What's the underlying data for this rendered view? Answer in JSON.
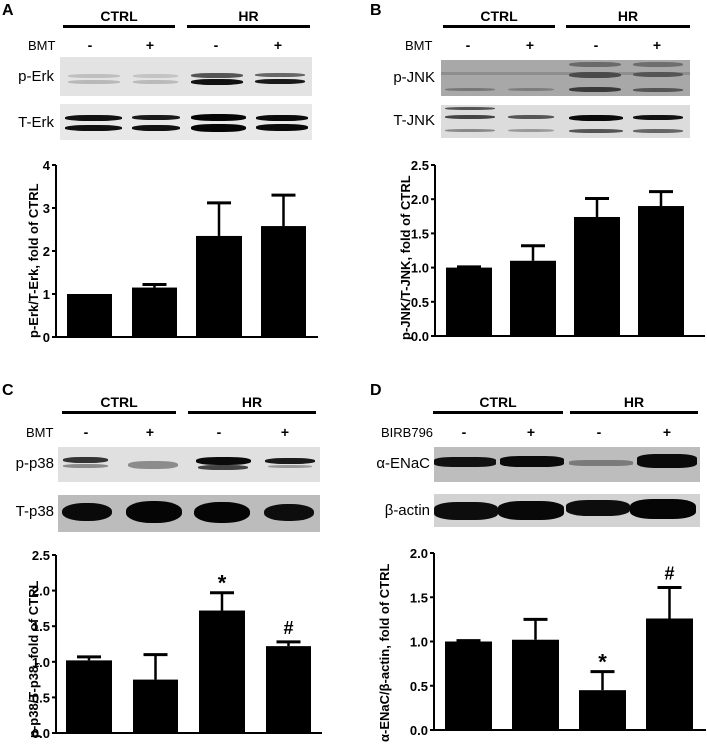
{
  "panels": [
    {
      "letter": "A",
      "groups": [
        "CTRL",
        "HR"
      ],
      "treatment": "BMT",
      "signs": [
        "-",
        "+",
        "-",
        "+"
      ],
      "blots": [
        {
          "label": "p-Erk",
          "bg": "#e4e4e4"
        },
        {
          "label": "T-Erk",
          "bg": "#e8e8e8"
        }
      ]
    },
    {
      "letter": "B",
      "groups": [
        "CTRL",
        "HR"
      ],
      "treatment": "BMT",
      "signs": [
        "-",
        "+",
        "-",
        "+"
      ],
      "blots": [
        {
          "label": "p-JNK",
          "bg": "#9a9a9a"
        },
        {
          "label": "T-JNK",
          "bg": "#dcdcdc"
        }
      ]
    },
    {
      "letter": "C",
      "groups": [
        "CTRL",
        "HR"
      ],
      "treatment": "BMT",
      "signs": [
        "-",
        "+",
        "-",
        "+"
      ],
      "blots": [
        {
          "label": "p-p38",
          "bg": "#e2e2e2"
        },
        {
          "label": "T-p38",
          "bg": "#bdbdbd"
        }
      ]
    },
    {
      "letter": "D",
      "groups": [
        "CTRL",
        "HR"
      ],
      "treatment": "BIRB796",
      "signs": [
        "-",
        "+",
        "-",
        "+"
      ],
      "blots": [
        {
          "label": "α-ENaC",
          "bg": "#bfbfbf"
        },
        {
          "label": "β-actin",
          "bg": "#d4d4d4"
        }
      ]
    }
  ],
  "chart_data": [
    {
      "panel": "A",
      "type": "bar",
      "title": "",
      "categories": [
        "CTRL BMT-",
        "CTRL BMT+",
        "HR BMT-",
        "HR BMT+"
      ],
      "values": [
        1.0,
        1.15,
        2.35,
        2.58
      ],
      "error_upper": [
        1.0,
        1.22,
        3.12,
        3.3
      ],
      "annotations": [
        "",
        "",
        "",
        ""
      ],
      "xlabel": "",
      "ylabel": "p-Erk/T-Erk, fold of CTRL",
      "ylim": [
        0,
        4
      ],
      "yticks": [
        "0",
        "1",
        "2",
        "3",
        "4"
      ],
      "grid": false,
      "bar_color": "#000000"
    },
    {
      "panel": "B",
      "type": "bar",
      "title": "",
      "categories": [
        "CTRL BMT-",
        "CTRL BMT+",
        "HR BMT-",
        "HR BMT+"
      ],
      "values": [
        1.0,
        1.1,
        1.74,
        1.9
      ],
      "error_upper": [
        1.01,
        1.32,
        2.01,
        2.11
      ],
      "annotations": [
        "",
        "",
        "",
        ""
      ],
      "xlabel": "",
      "ylabel": "p-JNK/T-JNK, fold of CTRL",
      "ylim": [
        0,
        2.5
      ],
      "yticks": [
        "0.0",
        "0.5",
        "1.0",
        "1.5",
        "2.0",
        "2.5"
      ],
      "grid": false,
      "bar_color": "#000000"
    },
    {
      "panel": "C",
      "type": "bar",
      "title": "",
      "categories": [
        "CTRL BMT-",
        "CTRL BMT+",
        "HR BMT-",
        "HR BMT+"
      ],
      "values": [
        1.02,
        0.75,
        1.72,
        1.22
      ],
      "error_upper": [
        1.07,
        1.1,
        1.97,
        1.28
      ],
      "annotations": [
        "",
        "",
        "*",
        "#"
      ],
      "xlabel": "",
      "ylabel": "p-p38/T-p38, fold of CTRL",
      "ylim": [
        0,
        2.5
      ],
      "yticks": [
        "0.0",
        "0.5",
        "1.0",
        "1.5",
        "2.0",
        "2.5"
      ],
      "grid": false,
      "bar_color": "#000000"
    },
    {
      "panel": "D",
      "type": "bar",
      "title": "",
      "categories": [
        "CTRL BIRB796-",
        "CTRL BIRB796+",
        "HR BIRB796-",
        "HR BIRB796+"
      ],
      "values": [
        1.0,
        1.02,
        0.45,
        1.26
      ],
      "error_upper": [
        1.01,
        1.25,
        0.66,
        1.61
      ],
      "annotations": [
        "",
        "",
        "*",
        "#"
      ],
      "xlabel": "",
      "ylabel": "α-ENaC/β-actin, fold of CTRL",
      "ylim": [
        0,
        2.0
      ],
      "yticks": [
        "0.0",
        "0.5",
        "1.0",
        "1.5",
        "2.0"
      ],
      "grid": false,
      "bar_color": "#000000"
    }
  ]
}
